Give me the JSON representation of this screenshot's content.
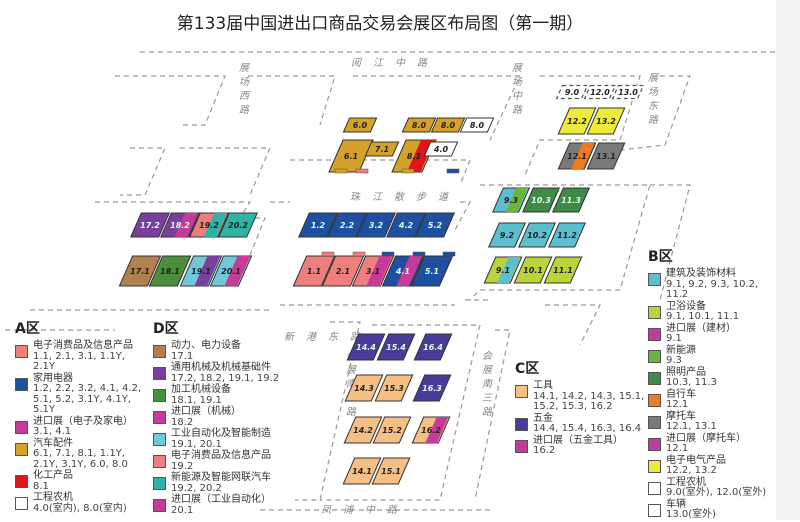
{
  "title": "第133届中国进出口商品交易会展区布局图（第一期）",
  "roads": [
    "阅江中路",
    "展场西路",
    "展场中路",
    "展场东路",
    "珠江散步道",
    "新港东路",
    "会展南二路",
    "会展南三路",
    "凤浦中路"
  ],
  "halls": [
    {
      "label": "17.2",
      "fill": "#7a3f9a"
    },
    {
      "label": "18.2",
      "fill": "#7a3f9a",
      "accent": "#c63a9a"
    },
    {
      "label": "19.2",
      "fill": "#ef7f7c",
      "accent": "#2fb3a6"
    },
    {
      "label": "20.2",
      "fill": "#2fb3a6"
    },
    {
      "label": "17.1",
      "fill": "#b08050"
    },
    {
      "label": "18.1",
      "fill": "#4a8f3a"
    },
    {
      "label": "19.1",
      "fill": "#72c8d8",
      "accent": "#7a3f9a"
    },
    {
      "label": "20.1",
      "fill": "#72c8d8",
      "accent": "#c63a9a"
    },
    {
      "label": "1.2",
      "fill": "#1f4fa0"
    },
    {
      "label": "2.2",
      "fill": "#1f4fa0"
    },
    {
      "label": "3.2",
      "fill": "#1f4fa0"
    },
    {
      "label": "4.2",
      "fill": "#1f4fa0"
    },
    {
      "label": "5.2",
      "fill": "#1f4fa0"
    },
    {
      "label": "1.1",
      "fill": "#ef7f7c"
    },
    {
      "label": "2.1",
      "fill": "#ef7f7c"
    },
    {
      "label": "3.1",
      "fill": "#ef7f7c",
      "accent": "#c63a9a"
    },
    {
      "label": "4.1",
      "fill": "#1f4fa0",
      "accent": "#c63a9a"
    },
    {
      "label": "5.1",
      "fill": "#1f4fa0"
    },
    {
      "label": "6.0",
      "fill": "#d4a22a"
    },
    {
      "label": "8.0",
      "fill": "#d4a22a"
    },
    {
      "label": "8.0",
      "fill": "#d4a22a"
    },
    {
      "label": "8.0",
      "fill": "#ffffff"
    },
    {
      "label": "6.1",
      "fill": "#d4a22a"
    },
    {
      "label": "7.1",
      "fill": "#d4a22a"
    },
    {
      "label": "8.1",
      "fill": "#d4a22a",
      "accent": "#e0141e"
    },
    {
      "label": "4.0",
      "fill": "#ffffff"
    },
    {
      "label": "12.2",
      "fill": "#ecea3a"
    },
    {
      "label": "13.2",
      "fill": "#ecea3a"
    },
    {
      "label": "12.1",
      "fill": "#7a7a7a",
      "accent": "#ef7a1f"
    },
    {
      "label": "13.1",
      "fill": "#7a7a7a"
    },
    {
      "label": "9.3",
      "fill": "#5bbfcf",
      "accent": "#6ab63a"
    },
    {
      "label": "10.3",
      "fill": "#3f8a45"
    },
    {
      "label": "11.3",
      "fill": "#3f8a45"
    },
    {
      "label": "9.2",
      "fill": "#5bbfcf"
    },
    {
      "label": "10.2",
      "fill": "#5bbfcf"
    },
    {
      "label": "11.2",
      "fill": "#5bbfcf"
    },
    {
      "label": "9.1",
      "fill": "#bcd33a",
      "accent": "#5bbfcf"
    },
    {
      "label": "10.1",
      "fill": "#bcd33a"
    },
    {
      "label": "11.1",
      "fill": "#bcd33a"
    },
    {
      "label": "14.4",
      "fill": "#4a3a9a"
    },
    {
      "label": "15.4",
      "fill": "#4a3a9a"
    },
    {
      "label": "16.4",
      "fill": "#4a3a9a"
    },
    {
      "label": "14.3",
      "fill": "#f6bf85"
    },
    {
      "label": "15.3",
      "fill": "#f6bf85"
    },
    {
      "label": "16.3",
      "fill": "#4a3a9a"
    },
    {
      "label": "14.2",
      "fill": "#f6bf85"
    },
    {
      "label": "15.2",
      "fill": "#f6bf85"
    },
    {
      "label": "16.2",
      "fill": "#f6bf85",
      "accent": "#c63a9a"
    },
    {
      "label": "14.1",
      "fill": "#f6bf85"
    },
    {
      "label": "15.1",
      "fill": "#f6bf85"
    },
    {
      "label": "9.0",
      "fill": "#ffffff",
      "dashed": true
    },
    {
      "label": "12.0",
      "fill": "#ffffff",
      "dashed": true
    },
    {
      "label": "13.0",
      "fill": "#ffffff",
      "dashed": true
    }
  ],
  "legend": {
    "A": {
      "title": "A区",
      "items": [
        {
          "name": "电子消费品及信息产品",
          "codes": "1.1, 2.1, 3.1, 1.1Y, 2.1Y",
          "color": "#ef7f7c"
        },
        {
          "name": "家用电器",
          "codes": "1.2, 2.2, 3.2, 4.1, 4.2, 5.1, 5.2, 3.1Y, 4.1Y, 5.1Y",
          "color": "#1f4fa0"
        },
        {
          "name": "进口展（电子及家电）",
          "codes": "3.1, 4.1",
          "color": "#c63a9a"
        },
        {
          "name": "汽车配件",
          "codes": "6.1, 7.1, 8.1, 1.1Y, 2.1Y, 3.1Y, 6.0, 8.0",
          "color": "#d4a22a"
        },
        {
          "name": "化工产品",
          "codes": "8.1",
          "color": "#e0141e"
        },
        {
          "name": "工程农机",
          "codes": "4.0(室内), 8.0(室内)",
          "color": "#ffffff"
        }
      ]
    },
    "D": {
      "title": "D区",
      "items": [
        {
          "name": "动力、电力设备",
          "codes": "17.1",
          "color": "#b08050"
        },
        {
          "name": "通用机械及机械基础件",
          "codes": "17.2, 18.2, 19.1, 19.2",
          "color": "#7a3f9a"
        },
        {
          "name": "加工机械设备",
          "codes": "18.1, 19.1",
          "color": "#4a8f3a"
        },
        {
          "name": "进口展（机械）",
          "codes": "18.2",
          "color": "#c63a9a"
        },
        {
          "name": "工业自动化及智能制造",
          "codes": "19.1, 20.1",
          "color": "#72c8d8"
        },
        {
          "name": "电子消费品及信息产品",
          "codes": "19.2",
          "color": "#ef7f7c"
        },
        {
          "name": "新能源及智能网联汽车",
          "codes": "19.2, 20.2",
          "color": "#2fb3a6"
        },
        {
          "name": "进口展（工业自动化）",
          "codes": "20.1",
          "color": "#c63a9a"
        }
      ]
    },
    "C": {
      "title": "C区",
      "items": [
        {
          "name": "工具",
          "codes": "14.1, 14.2, 14.3, 15.1, 15.2, 15.3, 16.2",
          "color": "#f6bf85"
        },
        {
          "name": "五金",
          "codes": "14.4, 15.4, 16.3, 16.4",
          "color": "#4a3a9a"
        },
        {
          "name": "进口展（五金工具）",
          "codes": "16.2",
          "color": "#c63a9a"
        }
      ]
    },
    "B": {
      "title": "B区",
      "items": [
        {
          "name": "建筑及装饰材料",
          "codes": "9.1, 9.2, 9.3, 10.2, 11.2",
          "color": "#5bbfcf"
        },
        {
          "name": "卫浴设备",
          "codes": "9.1, 10.1, 11.1",
          "color": "#bcd33a"
        },
        {
          "name": "进口展（建材）",
          "codes": "9.1",
          "color": "#c63a9a"
        },
        {
          "name": "新能源",
          "codes": "9.3",
          "color": "#6ab63a"
        },
        {
          "name": "照明产品",
          "codes": "10.3, 11.3",
          "color": "#3f8a45"
        },
        {
          "name": "自行车",
          "codes": "12.1",
          "color": "#ef7a1f"
        },
        {
          "name": "摩托车",
          "codes": "12.1, 13.1",
          "color": "#7a7a7a"
        },
        {
          "name": "进口展（摩托车）",
          "codes": "12.1",
          "color": "#c63a9a"
        },
        {
          "name": "电子电气产品",
          "codes": "12.2, 13.2",
          "color": "#ecea3a"
        },
        {
          "name": "工程农机",
          "codes": "9.0(室外), 12.0(室外)",
          "color": "#ffffff"
        },
        {
          "name": "车辆",
          "codes": "13.0(室外)",
          "color": "#ffffff"
        }
      ]
    }
  }
}
